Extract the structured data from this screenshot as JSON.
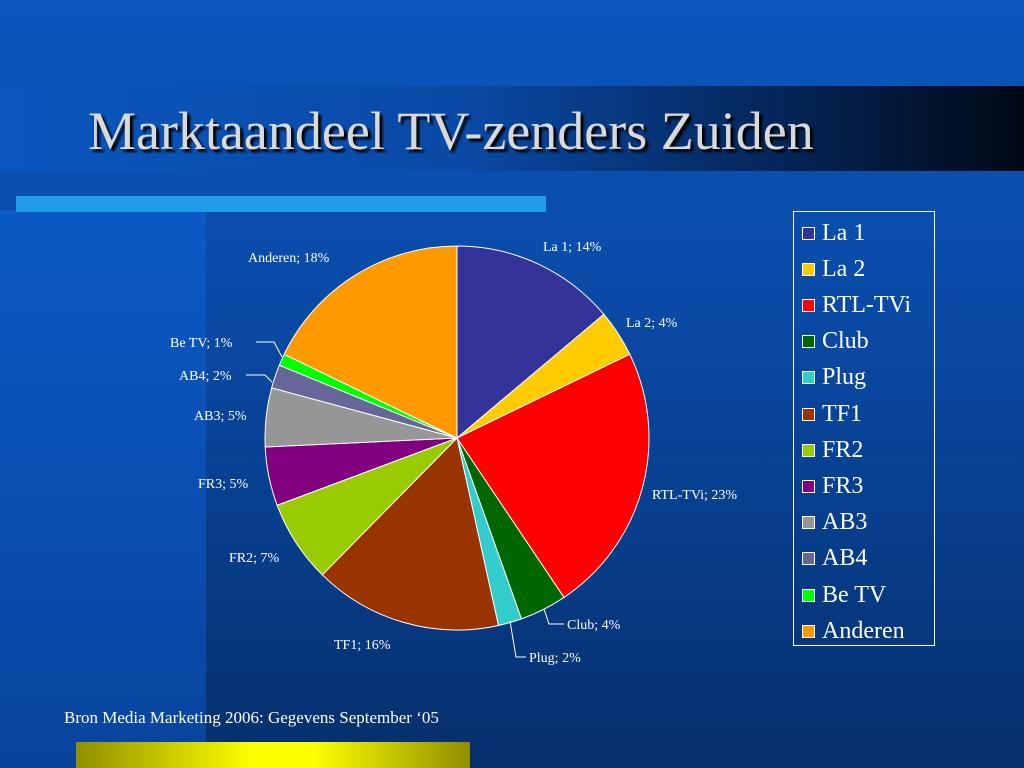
{
  "slide": {
    "title": "Marktaandeel TV-zenders Zuiden",
    "source": "Bron Media Marketing 2006: Gegevens September ‘05"
  },
  "colors": {
    "background": "#0a4aa6",
    "accent_bar": "#1f9bea",
    "bottom_bar": "#ffff00"
  },
  "chart_data": {
    "type": "pie",
    "title": "",
    "legend_position": "right",
    "labels_format": "category; percent",
    "slices": [
      {
        "name": "La 1",
        "value": 14,
        "label": "La 1; 14%",
        "color": "#333399"
      },
      {
        "name": "La 2",
        "value": 4,
        "label": "La 2; 4%",
        "color": "#ffcc00"
      },
      {
        "name": "RTL-TVi",
        "value": 23,
        "label": "RTL-TVi; 23%",
        "color": "#ff0000"
      },
      {
        "name": "Club",
        "value": 4,
        "label": "Club; 4%",
        "color": "#006600"
      },
      {
        "name": "Plug",
        "value": 2,
        "label": "Plug; 2%",
        "color": "#33cccc"
      },
      {
        "name": "TF1",
        "value": 16,
        "label": "TF1; 16%",
        "color": "#993300"
      },
      {
        "name": "FR2",
        "value": 7,
        "label": "FR2; 7%",
        "color": "#99cc00"
      },
      {
        "name": "FR3",
        "value": 5,
        "label": "FR3; 5%",
        "color": "#800080"
      },
      {
        "name": "AB3",
        "value": 5,
        "label": "AB3; 5%",
        "color": "#969696"
      },
      {
        "name": "AB4",
        "value": 2,
        "label": "AB4; 2%",
        "color": "#666699"
      },
      {
        "name": "Be TV",
        "value": 1,
        "label": "Be TV; 1%",
        "color": "#00ff00"
      },
      {
        "name": "Anderen",
        "value": 18,
        "label": "Anderen; 18%",
        "color": "#ff9900"
      }
    ]
  }
}
